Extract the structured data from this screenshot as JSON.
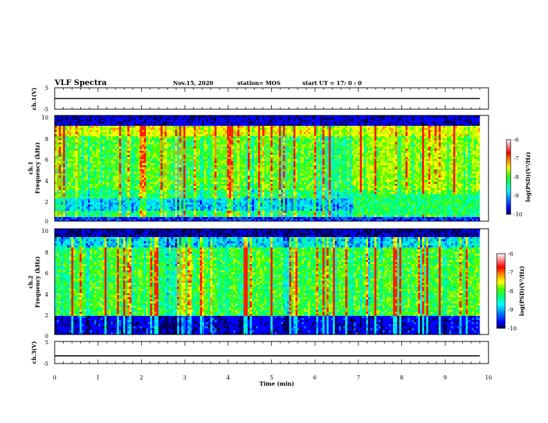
{
  "header": {
    "title": "VLF Spectra",
    "date": "Nov.15, 2020",
    "station": "station= MOS",
    "start": "start  UT =   17: 0  : 0"
  },
  "colors": {
    "spectrum": [
      "#000000",
      "#00007a",
      "#0000ff",
      "#0090ff",
      "#00ffff",
      "#00ff90",
      "#40ff00",
      "#b0ff00",
      "#ffff00",
      "#ff9000",
      "#ff0000",
      "#ffffff"
    ]
  },
  "chart_data": {
    "type": "heatmap",
    "xlabel": "Time (min)",
    "xlim": [
      0,
      10
    ],
    "x_ticks": [
      "0",
      "1",
      "2",
      "3",
      "4",
      "5",
      "6",
      "7",
      "8",
      "9",
      "10"
    ],
    "panels": [
      {
        "name": "ch1-waveform",
        "ylabel": "ch.1(V)",
        "ylim": [
          -5,
          5
        ],
        "y_ticks": [
          "5",
          "-5"
        ],
        "trace_level": 0,
        "trace_end": 9.8
      },
      {
        "name": "ch1-spectrogram",
        "ylabel_line1": "ch.1",
        "ylabel_line2": "Frequency (kHz)",
        "ylim": [
          0,
          10
        ],
        "y_ticks": [
          "0",
          "2",
          "4",
          "6",
          "8",
          "10"
        ],
        "data_end": 9.8,
        "colorbar": {
          "label": "log(PSD)(V²/Hz)",
          "range": [
            -10,
            -6
          ],
          "ticks": [
            "-6",
            "-7",
            "-8",
            "-9",
            "-10"
          ]
        }
      },
      {
        "name": "ch2-spectrogram",
        "ylabel_line1": "ch.2",
        "ylabel_line2": "Frequency (kHz)",
        "ylim": [
          0,
          10
        ],
        "y_ticks": [
          "0",
          "2",
          "4",
          "6",
          "8",
          "10"
        ],
        "data_end": 9.8,
        "colorbar": {
          "label": "log(PSD)(V²/Hz)",
          "range": [
            -10,
            -6
          ],
          "ticks": [
            "-6",
            "-7",
            "-8",
            "-9",
            "-10"
          ]
        }
      },
      {
        "name": "ch3-waveform",
        "ylabel": "ch.3(V)",
        "ylim": [
          -5,
          5
        ],
        "y_ticks": [
          "5",
          "-5"
        ],
        "trace_level": -1.5,
        "trace_end": 9.8
      }
    ]
  }
}
